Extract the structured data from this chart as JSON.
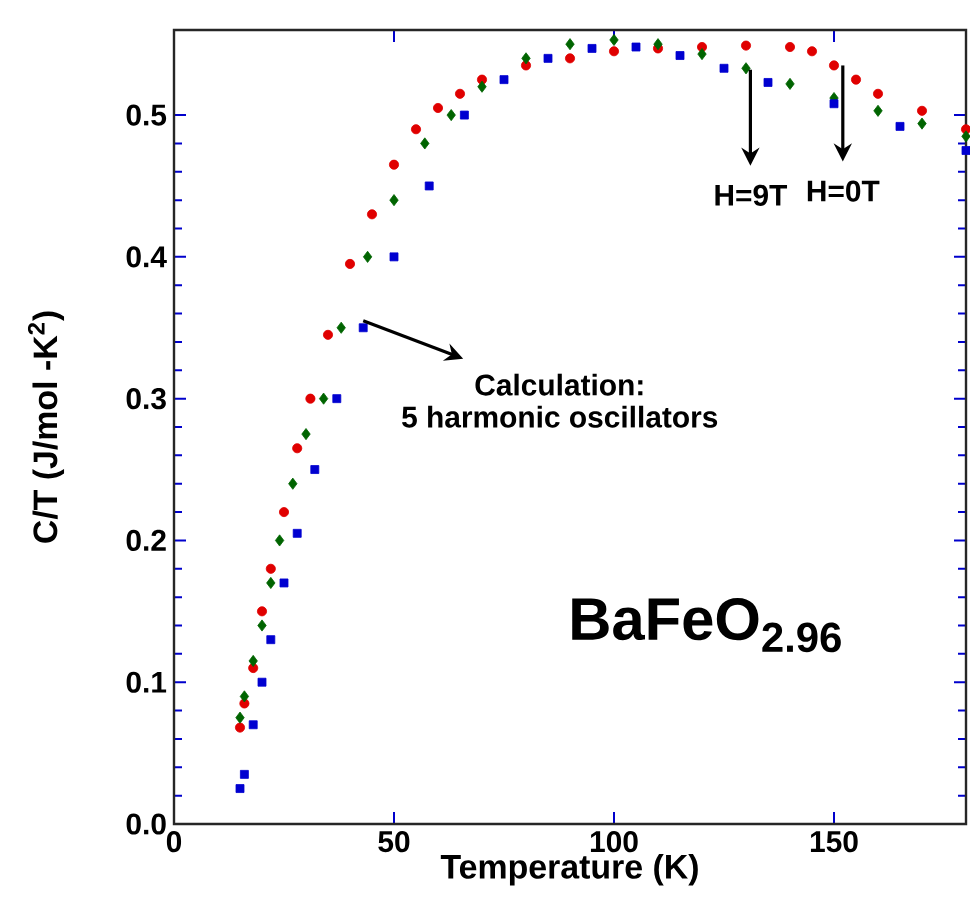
{
  "chart_data": {
    "type": "scatter",
    "xlabel": "Temperature (K)",
    "ylabel": "C/T (J/mol -K$^{2}$)",
    "xlim": [
      0,
      180
    ],
    "ylim": [
      0,
      0.56
    ],
    "xticks": [
      0,
      50,
      100,
      150
    ],
    "yticks": [
      {
        "value": 0,
        "label": "0.0"
      },
      0.1,
      0.2,
      0.3,
      0.4,
      0.5
    ],
    "grid": false,
    "series": [
      {
        "color": "#e00000",
        "marker": "circle",
        "x": [
          15,
          16,
          18,
          20,
          22,
          25,
          28,
          31,
          35,
          40,
          45,
          50,
          55,
          60,
          65,
          70,
          80,
          90,
          100,
          110,
          120,
          130,
          140,
          145,
          150,
          155,
          160,
          170,
          180
        ],
        "values": [
          0.068,
          0.085,
          0.11,
          0.15,
          0.18,
          0.22,
          0.265,
          0.3,
          0.345,
          0.395,
          0.43,
          0.465,
          0.49,
          0.505,
          0.515,
          0.525,
          0.535,
          0.54,
          0.545,
          0.547,
          0.548,
          0.549,
          0.548,
          0.545,
          0.535,
          0.525,
          0.515,
          0.503,
          0.49
        ]
      },
      {
        "color": "#006400",
        "marker": "diamond",
        "x": [
          15,
          16,
          18,
          20,
          22,
          24,
          27,
          30,
          34,
          38,
          44,
          50,
          57,
          63,
          70,
          80,
          90,
          100,
          110,
          120,
          130,
          140,
          150,
          160,
          170,
          180
        ],
        "values": [
          0.075,
          0.09,
          0.115,
          0.14,
          0.17,
          0.2,
          0.24,
          0.275,
          0.3,
          0.35,
          0.4,
          0.44,
          0.48,
          0.5,
          0.52,
          0.54,
          0.55,
          0.553,
          0.55,
          0.543,
          0.533,
          0.522,
          0.512,
          0.503,
          0.494,
          0.485
        ]
      },
      {
        "color": "#0000d0",
        "marker": "square",
        "x": [
          15,
          16,
          18,
          20,
          22,
          25,
          28,
          32,
          37,
          43,
          50,
          58,
          66,
          75,
          85,
          95,
          105,
          115,
          125,
          135,
          150,
          165,
          180
        ],
        "values": [
          0.025,
          0.035,
          0.07,
          0.1,
          0.13,
          0.17,
          0.205,
          0.25,
          0.3,
          0.35,
          0.4,
          0.45,
          0.5,
          0.525,
          0.54,
          0.547,
          0.548,
          0.542,
          0.533,
          0.523,
          0.508,
          0.492,
          0.475
        ]
      }
    ],
    "annotations": [
      {
        "text": "H=9T",
        "x": 131,
        "y": 0.532
      },
      {
        "text": "H=0T",
        "x": 152,
        "y": 0.535
      },
      {
        "text": "Calculation:",
        "x": 43,
        "y": 0.355
      },
      "5 harmonic oscillators",
      "BaFeO$_{2.96}$"
    ]
  }
}
